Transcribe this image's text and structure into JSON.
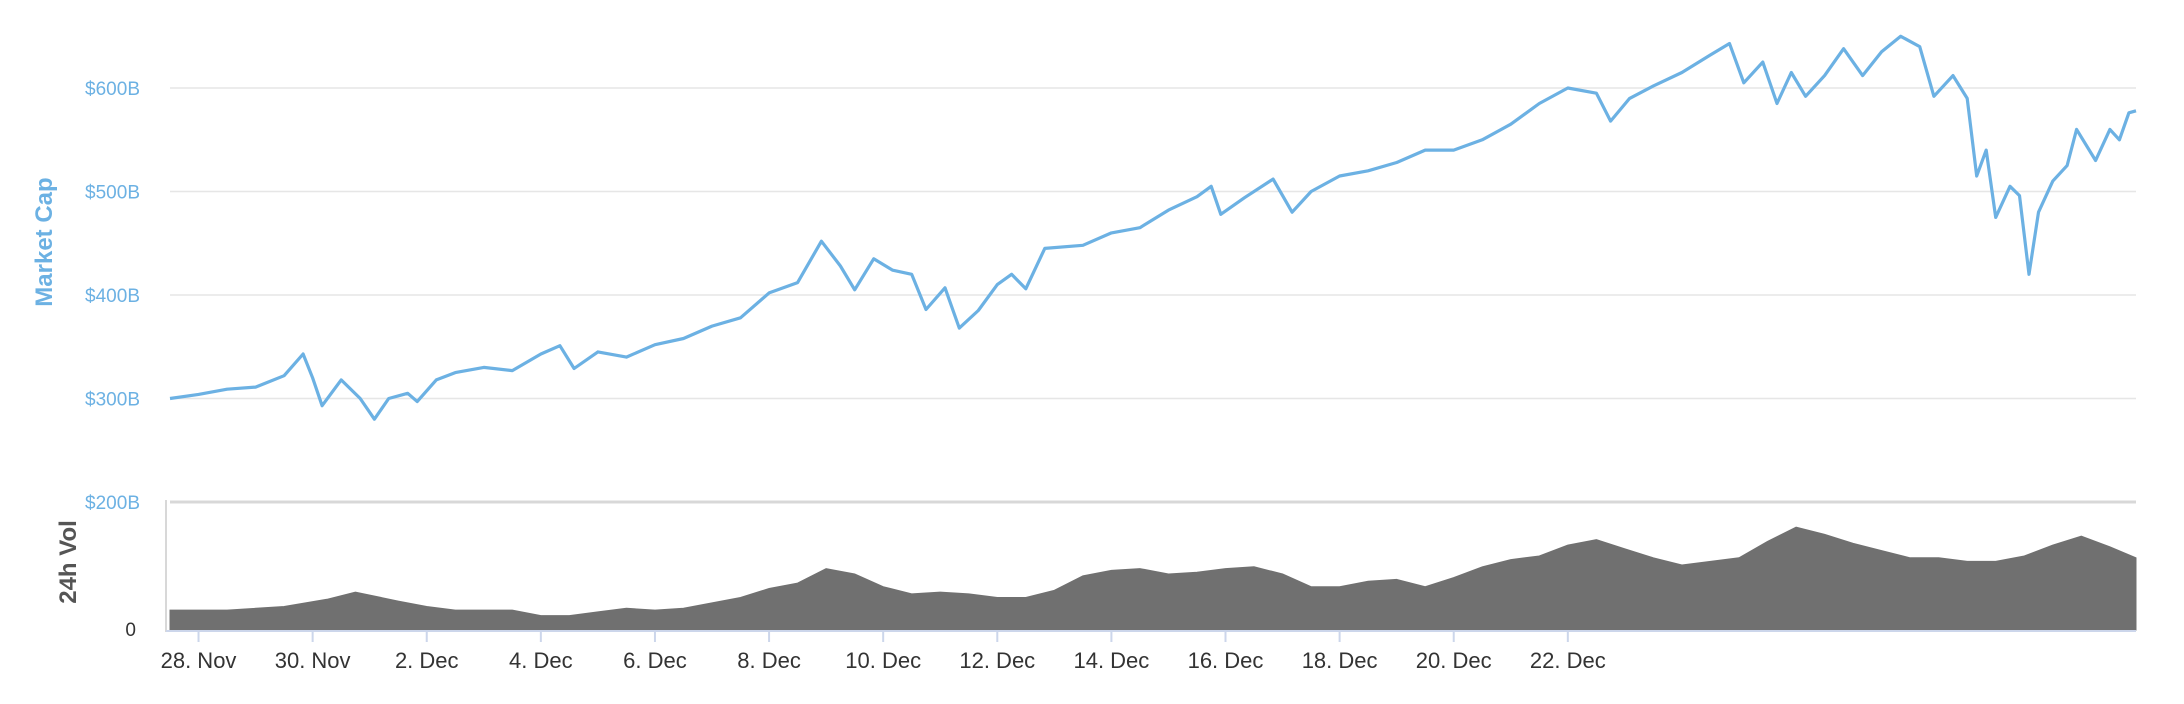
{
  "chart_data": {
    "type": "line",
    "colors": {
      "market_cap": "#6cb1e3",
      "volume": "#707070",
      "grid": "#e6e6e6",
      "axis_text": "#333333"
    },
    "market_cap": {
      "ylabel": "Market Cap",
      "ylim": [
        200,
        650
      ],
      "yticks": [
        {
          "value": 200,
          "label": "$200B"
        },
        {
          "value": 300,
          "label": "$300B"
        },
        {
          "value": 400,
          "label": "$400B"
        },
        {
          "value": 500,
          "label": "$500B"
        },
        {
          "value": 600,
          "label": "$600B"
        }
      ],
      "unit": "billion USD",
      "points": [
        [
          "2017-11-27T12:00",
          300
        ],
        [
          "2017-11-28T00:00",
          304
        ],
        [
          "2017-11-28T12:00",
          309
        ],
        [
          "2017-11-29T00:00",
          311
        ],
        [
          "2017-11-29T12:00",
          322
        ],
        [
          "2017-11-29T20:00",
          343
        ],
        [
          "2017-11-30T00:00",
          320
        ],
        [
          "2017-11-30T04:00",
          293
        ],
        [
          "2017-11-30T12:00",
          318
        ],
        [
          "2017-11-30T20:00",
          300
        ],
        [
          "2017-12-01T02:00",
          280
        ],
        [
          "2017-12-01T08:00",
          300
        ],
        [
          "2017-12-01T16:00",
          305
        ],
        [
          "2017-12-01T20:00",
          297
        ],
        [
          "2017-12-02T04:00",
          318
        ],
        [
          "2017-12-02T12:00",
          325
        ],
        [
          "2017-12-03T00:00",
          330
        ],
        [
          "2017-12-03T12:00",
          327
        ],
        [
          "2017-12-04T00:00",
          343
        ],
        [
          "2017-12-04T08:00",
          351
        ],
        [
          "2017-12-04T14:00",
          329
        ],
        [
          "2017-12-05T00:00",
          345
        ],
        [
          "2017-12-05T12:00",
          340
        ],
        [
          "2017-12-06T00:00",
          352
        ],
        [
          "2017-12-06T12:00",
          358
        ],
        [
          "2017-12-07T00:00",
          370
        ],
        [
          "2017-12-07T12:00",
          378
        ],
        [
          "2017-12-08T00:00",
          402
        ],
        [
          "2017-12-08T12:00",
          412
        ],
        [
          "2017-12-08T22:00",
          452
        ],
        [
          "2017-12-09T06:00",
          428
        ],
        [
          "2017-12-09T12:00",
          405
        ],
        [
          "2017-12-09T20:00",
          435
        ],
        [
          "2017-12-10T04:00",
          424
        ],
        [
          "2017-12-10T12:00",
          420
        ],
        [
          "2017-12-10T18:00",
          386
        ],
        [
          "2017-12-11T02:00",
          407
        ],
        [
          "2017-12-11T08:00",
          368
        ],
        [
          "2017-12-11T16:00",
          385
        ],
        [
          "2017-12-12T00:00",
          410
        ],
        [
          "2017-12-12T06:00",
          420
        ],
        [
          "2017-12-12T12:00",
          406
        ],
        [
          "2017-12-12T20:00",
          445
        ],
        [
          "2017-12-13T12:00",
          448
        ],
        [
          "2017-12-14T00:00",
          460
        ],
        [
          "2017-12-14T12:00",
          465
        ],
        [
          "2017-12-15T00:00",
          482
        ],
        [
          "2017-12-15T12:00",
          495
        ],
        [
          "2017-12-15T18:00",
          505
        ],
        [
          "2017-12-15T22:00",
          478
        ],
        [
          "2017-12-16T08:00",
          494
        ],
        [
          "2017-12-16T20:00",
          512
        ],
        [
          "2017-12-17T04:00",
          480
        ],
        [
          "2017-12-17T12:00",
          500
        ],
        [
          "2017-12-18T00:00",
          515
        ],
        [
          "2017-12-18T12:00",
          520
        ],
        [
          "2017-12-19T00:00",
          528
        ],
        [
          "2017-12-19T12:00",
          540
        ],
        [
          "2017-12-20T00:00",
          540
        ],
        [
          "2017-12-20T12:00",
          550
        ],
        [
          "2017-12-21T00:00",
          565
        ],
        [
          "2017-12-21T12:00",
          585
        ],
        [
          "2017-12-22T00:00",
          600
        ],
        [
          "2017-12-22T12:00",
          595
        ],
        [
          "2017-12-22T18:00",
          568
        ],
        [
          "2017-12-23T02:00",
          590
        ],
        [
          "2017-12-23T12:00",
          602
        ],
        [
          "2017-12-24T00:00",
          615
        ],
        [
          "2017-12-24T12:00",
          632
        ],
        [
          "2017-12-24T20:00",
          643
        ],
        [
          "2017-12-25T02:00",
          605
        ],
        [
          "2017-12-25T10:00",
          625
        ],
        [
          "2017-12-25T16:00",
          585
        ],
        [
          "2017-12-25T22:00",
          615
        ],
        [
          "2017-12-26T04:00",
          592
        ],
        [
          "2017-12-26T12:00",
          612
        ],
        [
          "2017-12-26T20:00",
          638
        ],
        [
          "2017-12-27T04:00",
          612
        ],
        [
          "2017-12-27T12:00",
          635
        ],
        [
          "2017-12-27T20:00",
          650
        ],
        [
          "2017-12-28T04:00",
          640
        ],
        [
          "2017-12-28T10:00",
          592
        ],
        [
          "2017-12-28T18:00",
          612
        ],
        [
          "2017-12-29T00:00",
          590
        ],
        [
          "2017-12-29T04:00",
          515
        ],
        [
          "2017-12-29T08:00",
          540
        ],
        [
          "2017-12-29T12:00",
          475
        ],
        [
          "2017-12-29T18:00",
          505
        ],
        [
          "2017-12-29T22:00",
          496
        ],
        [
          "2017-12-30T02:00",
          420
        ],
        [
          "2017-12-30T06:00",
          480
        ],
        [
          "2017-12-30T12:00",
          510
        ],
        [
          "2017-12-30T18:00",
          525
        ],
        [
          "2017-12-30T22:00",
          560
        ],
        [
          "2017-12-31T06:00",
          530
        ],
        [
          "2017-12-31T12:00",
          560
        ],
        [
          "2017-12-31T16:00",
          550
        ],
        [
          "2017-12-31T20:00",
          576
        ],
        [
          "2017-12-31T23:00",
          578
        ]
      ]
    },
    "volume": {
      "ylabel": "24h Vol",
      "yticks": [
        {
          "value": 0,
          "label": "0"
        }
      ],
      "ymax": 72,
      "unit": "billion USD (approx.)",
      "points": [
        [
          "2017-11-27T12:00",
          11
        ],
        [
          "2017-11-28T12:00",
          11
        ],
        [
          "2017-11-29T12:00",
          13
        ],
        [
          "2017-11-30T06:00",
          17
        ],
        [
          "2017-11-30T18:00",
          21
        ],
        [
          "2017-12-01T12:00",
          16
        ],
        [
          "2017-12-02T00:00",
          13
        ],
        [
          "2017-12-02T12:00",
          11
        ],
        [
          "2017-12-03T12:00",
          11
        ],
        [
          "2017-12-04T00:00",
          8
        ],
        [
          "2017-12-04T12:00",
          8
        ],
        [
          "2017-12-05T00:00",
          10
        ],
        [
          "2017-12-05T12:00",
          12
        ],
        [
          "2017-12-06T00:00",
          11
        ],
        [
          "2017-12-06T12:00",
          12
        ],
        [
          "2017-12-07T00:00",
          15
        ],
        [
          "2017-12-07T12:00",
          18
        ],
        [
          "2017-12-08T00:00",
          23
        ],
        [
          "2017-12-08T12:00",
          26
        ],
        [
          "2017-12-09T00:00",
          34
        ],
        [
          "2017-12-09T12:00",
          31
        ],
        [
          "2017-12-10T00:00",
          24
        ],
        [
          "2017-12-10T12:00",
          20
        ],
        [
          "2017-12-11T00:00",
          21
        ],
        [
          "2017-12-11T12:00",
          20
        ],
        [
          "2017-12-12T00:00",
          18
        ],
        [
          "2017-12-12T12:00",
          18
        ],
        [
          "2017-12-13T00:00",
          22
        ],
        [
          "2017-12-13T12:00",
          30
        ],
        [
          "2017-12-14T00:00",
          33
        ],
        [
          "2017-12-14T12:00",
          34
        ],
        [
          "2017-12-15T00:00",
          31
        ],
        [
          "2017-12-15T12:00",
          32
        ],
        [
          "2017-12-16T00:00",
          34
        ],
        [
          "2017-12-16T12:00",
          35
        ],
        [
          "2017-12-17T00:00",
          31
        ],
        [
          "2017-12-17T12:00",
          24
        ],
        [
          "2017-12-18T00:00",
          24
        ],
        [
          "2017-12-18T12:00",
          27
        ],
        [
          "2017-12-19T00:00",
          28
        ],
        [
          "2017-12-19T12:00",
          24
        ],
        [
          "2017-12-20T00:00",
          29
        ],
        [
          "2017-12-20T12:00",
          35
        ],
        [
          "2017-12-21T00:00",
          39
        ],
        [
          "2017-12-21T12:00",
          41
        ],
        [
          "2017-12-22T00:00",
          47
        ],
        [
          "2017-12-22T12:00",
          50
        ],
        [
          "2017-12-23T00:00",
          45
        ],
        [
          "2017-12-23T12:00",
          40
        ],
        [
          "2017-12-24T00:00",
          36
        ],
        [
          "2017-12-24T12:00",
          38
        ],
        [
          "2017-12-25T00:00",
          40
        ],
        [
          "2017-12-25T12:00",
          49
        ],
        [
          "2017-12-26T00:00",
          57
        ],
        [
          "2017-12-26T12:00",
          53
        ],
        [
          "2017-12-27T00:00",
          48
        ],
        [
          "2017-12-27T12:00",
          44
        ],
        [
          "2017-12-28T00:00",
          40
        ],
        [
          "2017-12-28T12:00",
          40
        ],
        [
          "2017-12-29T00:00",
          38
        ],
        [
          "2017-12-29T12:00",
          38
        ],
        [
          "2017-12-30T00:00",
          41
        ],
        [
          "2017-12-30T12:00",
          47
        ],
        [
          "2017-12-31T00:00",
          52
        ],
        [
          "2017-12-31T12:00",
          46
        ],
        [
          "2017-12-31T23:00",
          40
        ]
      ]
    },
    "x_axis": {
      "range": [
        "2017-11-27T12:00",
        "2017-12-31T23:00"
      ],
      "ticks": [
        {
          "date": "2017-11-28",
          "label": "28. Nov"
        },
        {
          "date": "2017-11-30",
          "label": "30. Nov"
        },
        {
          "date": "2017-12-02",
          "label": "2. Dec"
        },
        {
          "date": "2017-12-04",
          "label": "4. Dec"
        },
        {
          "date": "2017-12-06",
          "label": "6. Dec"
        },
        {
          "date": "2017-12-08",
          "label": "8. Dec"
        },
        {
          "date": "2017-12-10",
          "label": "10. Dec"
        },
        {
          "date": "2017-12-12",
          "label": "12. Dec"
        },
        {
          "date": "2017-12-14",
          "label": "14. Dec"
        },
        {
          "date": "2017-12-16",
          "label": "16. Dec"
        },
        {
          "date": "2017-12-18",
          "label": "18. Dec"
        },
        {
          "date": "2017-12-20",
          "label": "20. Dec"
        },
        {
          "date": "2017-12-22",
          "label": "22. Dec"
        }
      ]
    },
    "grid": true,
    "legend": "none"
  }
}
